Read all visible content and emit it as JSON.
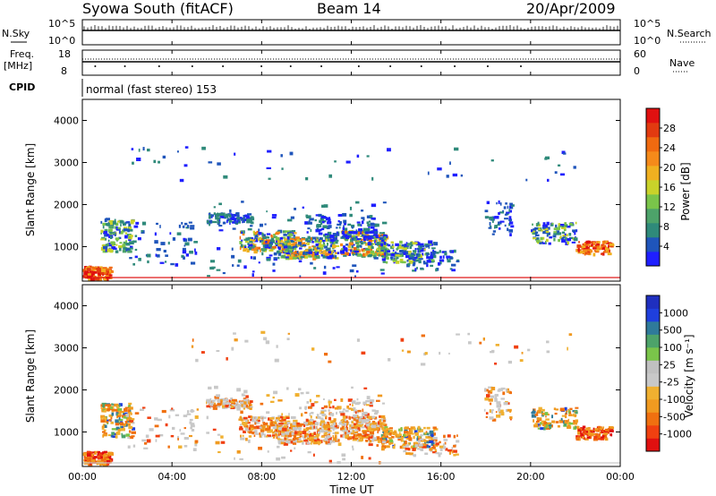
{
  "header": {
    "station": "Syowa South (fitACF)",
    "beam": "Beam 14",
    "date": "20/Apr/2009"
  },
  "top_panels": {
    "nsky_label": "N.Sky",
    "nsearch_label": "N.Search",
    "nsky_scale": [
      "10^5",
      "10^0"
    ],
    "nsearch_scale": [
      "10^5",
      "10^0"
    ],
    "freq_label": "Freq.",
    "freq_unit": "[MHz]",
    "freq_scale": [
      "18",
      "8"
    ],
    "nave_label": "Nave",
    "nave_scale": [
      "60",
      "0"
    ],
    "cpid_label": "CPID",
    "cpid_text": "normal (fast stereo) 153"
  },
  "colors": {
    "power": [
      "#1f1fff",
      "#1f55bb",
      "#2f8a7a",
      "#4da36a",
      "#7ac44a",
      "#c9d22a",
      "#f0b020",
      "#f58a1a",
      "#f06a10",
      "#e23a10",
      "#e01010"
    ],
    "velocity": [
      "#e01010",
      "#f04010",
      "#f07010",
      "#f09a20",
      "#f0b030",
      "#c8c8c8",
      "#c0c0c0",
      "#7ac44a",
      "#4da36a",
      "#2f7a9a",
      "#1f3fdd",
      "#1f2fbf"
    ]
  },
  "chart_data": [
    {
      "type": "heatmap",
      "name": "power",
      "xlabel": "",
      "ylabel": "Slant Range [km]",
      "yticks": [
        1000,
        2000,
        3000,
        4000
      ],
      "xticks": [],
      "colorbar_label": "Power [dB]",
      "colorbar_ticks": [
        "4",
        "8",
        "12",
        "16",
        "20",
        "24",
        "28"
      ],
      "xlim": [
        0,
        24
      ],
      "ylim": [
        180,
        4500
      ]
    },
    {
      "type": "heatmap",
      "name": "velocity",
      "xlabel": "Time UT",
      "ylabel": "Slant Range [km]",
      "yticks": [
        1000,
        2000,
        3000,
        4000
      ],
      "xticks": [
        "00:00",
        "04:00",
        "08:00",
        "12:00",
        "16:00",
        "20:00",
        "00:00"
      ],
      "colorbar_label": "Velocity [m s⁻¹]",
      "colorbar_ticks": [
        "-1000",
        "-500",
        "-100",
        "-25",
        "25",
        "100",
        "500",
        "1000"
      ],
      "xlim": [
        0,
        24
      ],
      "ylim": [
        180,
        4500
      ]
    }
  ]
}
